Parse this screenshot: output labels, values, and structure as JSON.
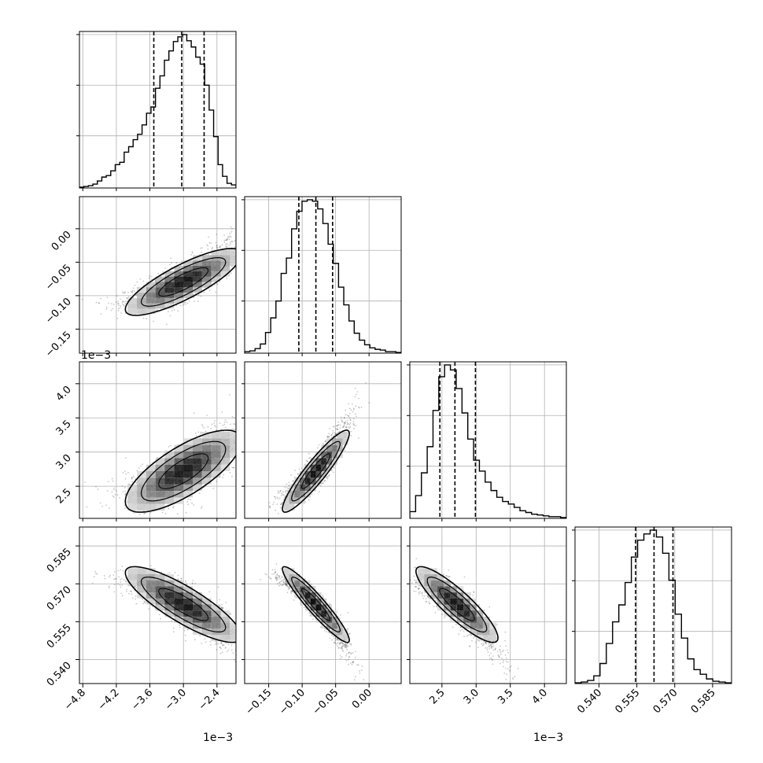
{
  "chart_data": {
    "type": "corner",
    "grid": true,
    "params": [
      {
        "range": [
          -4.86,
          -2.06
        ],
        "ticks": [
          -4.8,
          -4.2,
          -3.6,
          -3.0,
          -2.4
        ],
        "tick_labels": [
          "−4.8",
          "−4.2",
          "−3.6",
          "−3.0",
          "−2.4"
        ],
        "offset_label": "1e−3",
        "quantiles": [
          -3.53,
          -3.03,
          -2.63
        ],
        "hist": [
          1,
          2,
          3,
          5,
          9,
          14,
          16,
          22,
          30,
          33,
          46,
          53,
          62,
          69,
          81,
          96,
          104,
          128,
          144,
          164,
          176,
          188,
          194,
          197,
          189,
          181,
          168,
          159,
          132,
          100,
          66,
          30,
          15,
          6,
          4
        ]
      },
      {
        "range": [
          -0.186,
          0.048
        ],
        "ticks": [
          -0.15,
          -0.1,
          -0.05,
          0.0
        ],
        "tick_labels": [
          "−0.15",
          "−0.10",
          "−0.05",
          "0.00"
        ],
        "offset_label": "",
        "quantiles": [
          -0.105,
          -0.0795,
          -0.0545
        ],
        "hist": [
          2,
          3,
          6,
          12,
          27,
          46,
          68,
          104,
          124,
          162,
          185,
          198,
          200,
          198,
          188,
          169,
          142,
          117,
          86,
          63,
          42,
          26,
          17,
          11,
          7,
          5,
          4,
          2,
          2,
          1
        ]
      },
      {
        "range": [
          2.03,
          4.32
        ],
        "ticks": [
          2.5,
          3.0,
          3.5,
          4.0
        ],
        "tick_labels": [
          "2.5",
          "3.0",
          "3.5",
          "4.0"
        ],
        "offset_label": "1e−3",
        "quantiles": [
          2.47,
          2.69,
          2.99
        ],
        "hist": [
          8,
          27,
          54,
          85,
          128,
          168,
          182,
          176,
          154,
          125,
          94,
          69,
          56,
          43,
          33,
          25,
          20,
          17,
          13,
          9,
          7,
          5,
          4,
          3,
          2,
          2,
          1
        ]
      },
      {
        "range": [
          0.5305,
          0.5925
        ],
        "ticks": [
          0.54,
          0.555,
          0.57,
          0.585
        ],
        "tick_labels": [
          "0.540",
          "0.555",
          "0.570",
          "0.585"
        ],
        "offset_label": "",
        "quantiles": [
          0.5545,
          0.5618,
          0.5693
        ],
        "hist": [
          1,
          2,
          4,
          10,
          26,
          52,
          80,
          102,
          131,
          164,
          186,
          194,
          199,
          190,
          169,
          134,
          90,
          59,
          32,
          18,
          12,
          6,
          3,
          2,
          1
        ]
      }
    ],
    "pairs": [
      {
        "row": 1,
        "col": 0,
        "mean": [
          -3.0,
          -0.0795
        ],
        "sd": [
          0.52,
          0.025
        ],
        "corr": 0.82
      },
      {
        "row": 2,
        "col": 0,
        "mean": [
          -3.0,
          2.72
        ],
        "sd": [
          0.52,
          0.3
        ],
        "corr": 0.74
      },
      {
        "row": 2,
        "col": 1,
        "mean": [
          -0.0795,
          2.72
        ],
        "sd": [
          0.025,
          0.3
        ],
        "corr": 0.92
      },
      {
        "row": 3,
        "col": 0,
        "mean": [
          -3.0,
          0.5618
        ],
        "sd": [
          0.52,
          0.0075
        ],
        "corr": -0.84
      },
      {
        "row": 3,
        "col": 1,
        "mean": [
          -0.0795,
          0.5618
        ],
        "sd": [
          0.025,
          0.0075
        ],
        "corr": -0.94
      },
      {
        "row": 3,
        "col": 2,
        "mean": [
          2.72,
          0.5618
        ],
        "sd": [
          0.3,
          0.0075
        ],
        "corr": -0.88
      }
    ],
    "colors": {
      "line": "#000000",
      "grid": "#b0b0b0",
      "points": "#000000",
      "fill": "#000000"
    }
  }
}
